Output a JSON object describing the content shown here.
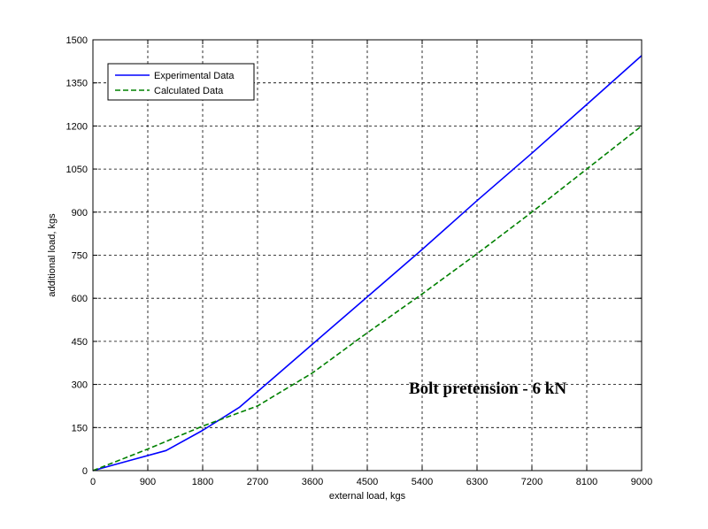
{
  "chart_data": {
    "type": "line",
    "title": "",
    "xlabel": "external load, kgs",
    "ylabel": "additional load, kgs",
    "xlim": [
      0,
      9000
    ],
    "ylim": [
      0,
      1500
    ],
    "xticks": [
      0,
      900,
      1800,
      2700,
      3600,
      4500,
      5400,
      6300,
      7200,
      8100,
      9000
    ],
    "yticks": [
      0,
      150,
      300,
      450,
      600,
      750,
      900,
      1050,
      1200,
      1350,
      1500
    ],
    "grid": true,
    "legend_position": "top-left",
    "annotation": "Bolt pretension - 6 kN",
    "series": [
      {
        "name": "Experimental Data",
        "color": "#0000ff",
        "style": "solid",
        "x": [
          0,
          600,
          1200,
          1800,
          2400,
          3000,
          3600,
          4500,
          5400,
          6300,
          7200,
          8100,
          9000
        ],
        "y": [
          0,
          35,
          70,
          140,
          220,
          330,
          440,
          605,
          770,
          940,
          1105,
          1275,
          1445
        ]
      },
      {
        "name": "Calculated Data",
        "color": "#008000",
        "style": "dashed",
        "x": [
          0,
          900,
          1800,
          2700,
          3600,
          4500,
          5400,
          6300,
          7200,
          8100,
          9000
        ],
        "y": [
          0,
          75,
          155,
          225,
          340,
          480,
          615,
          755,
          900,
          1050,
          1200
        ]
      }
    ]
  }
}
